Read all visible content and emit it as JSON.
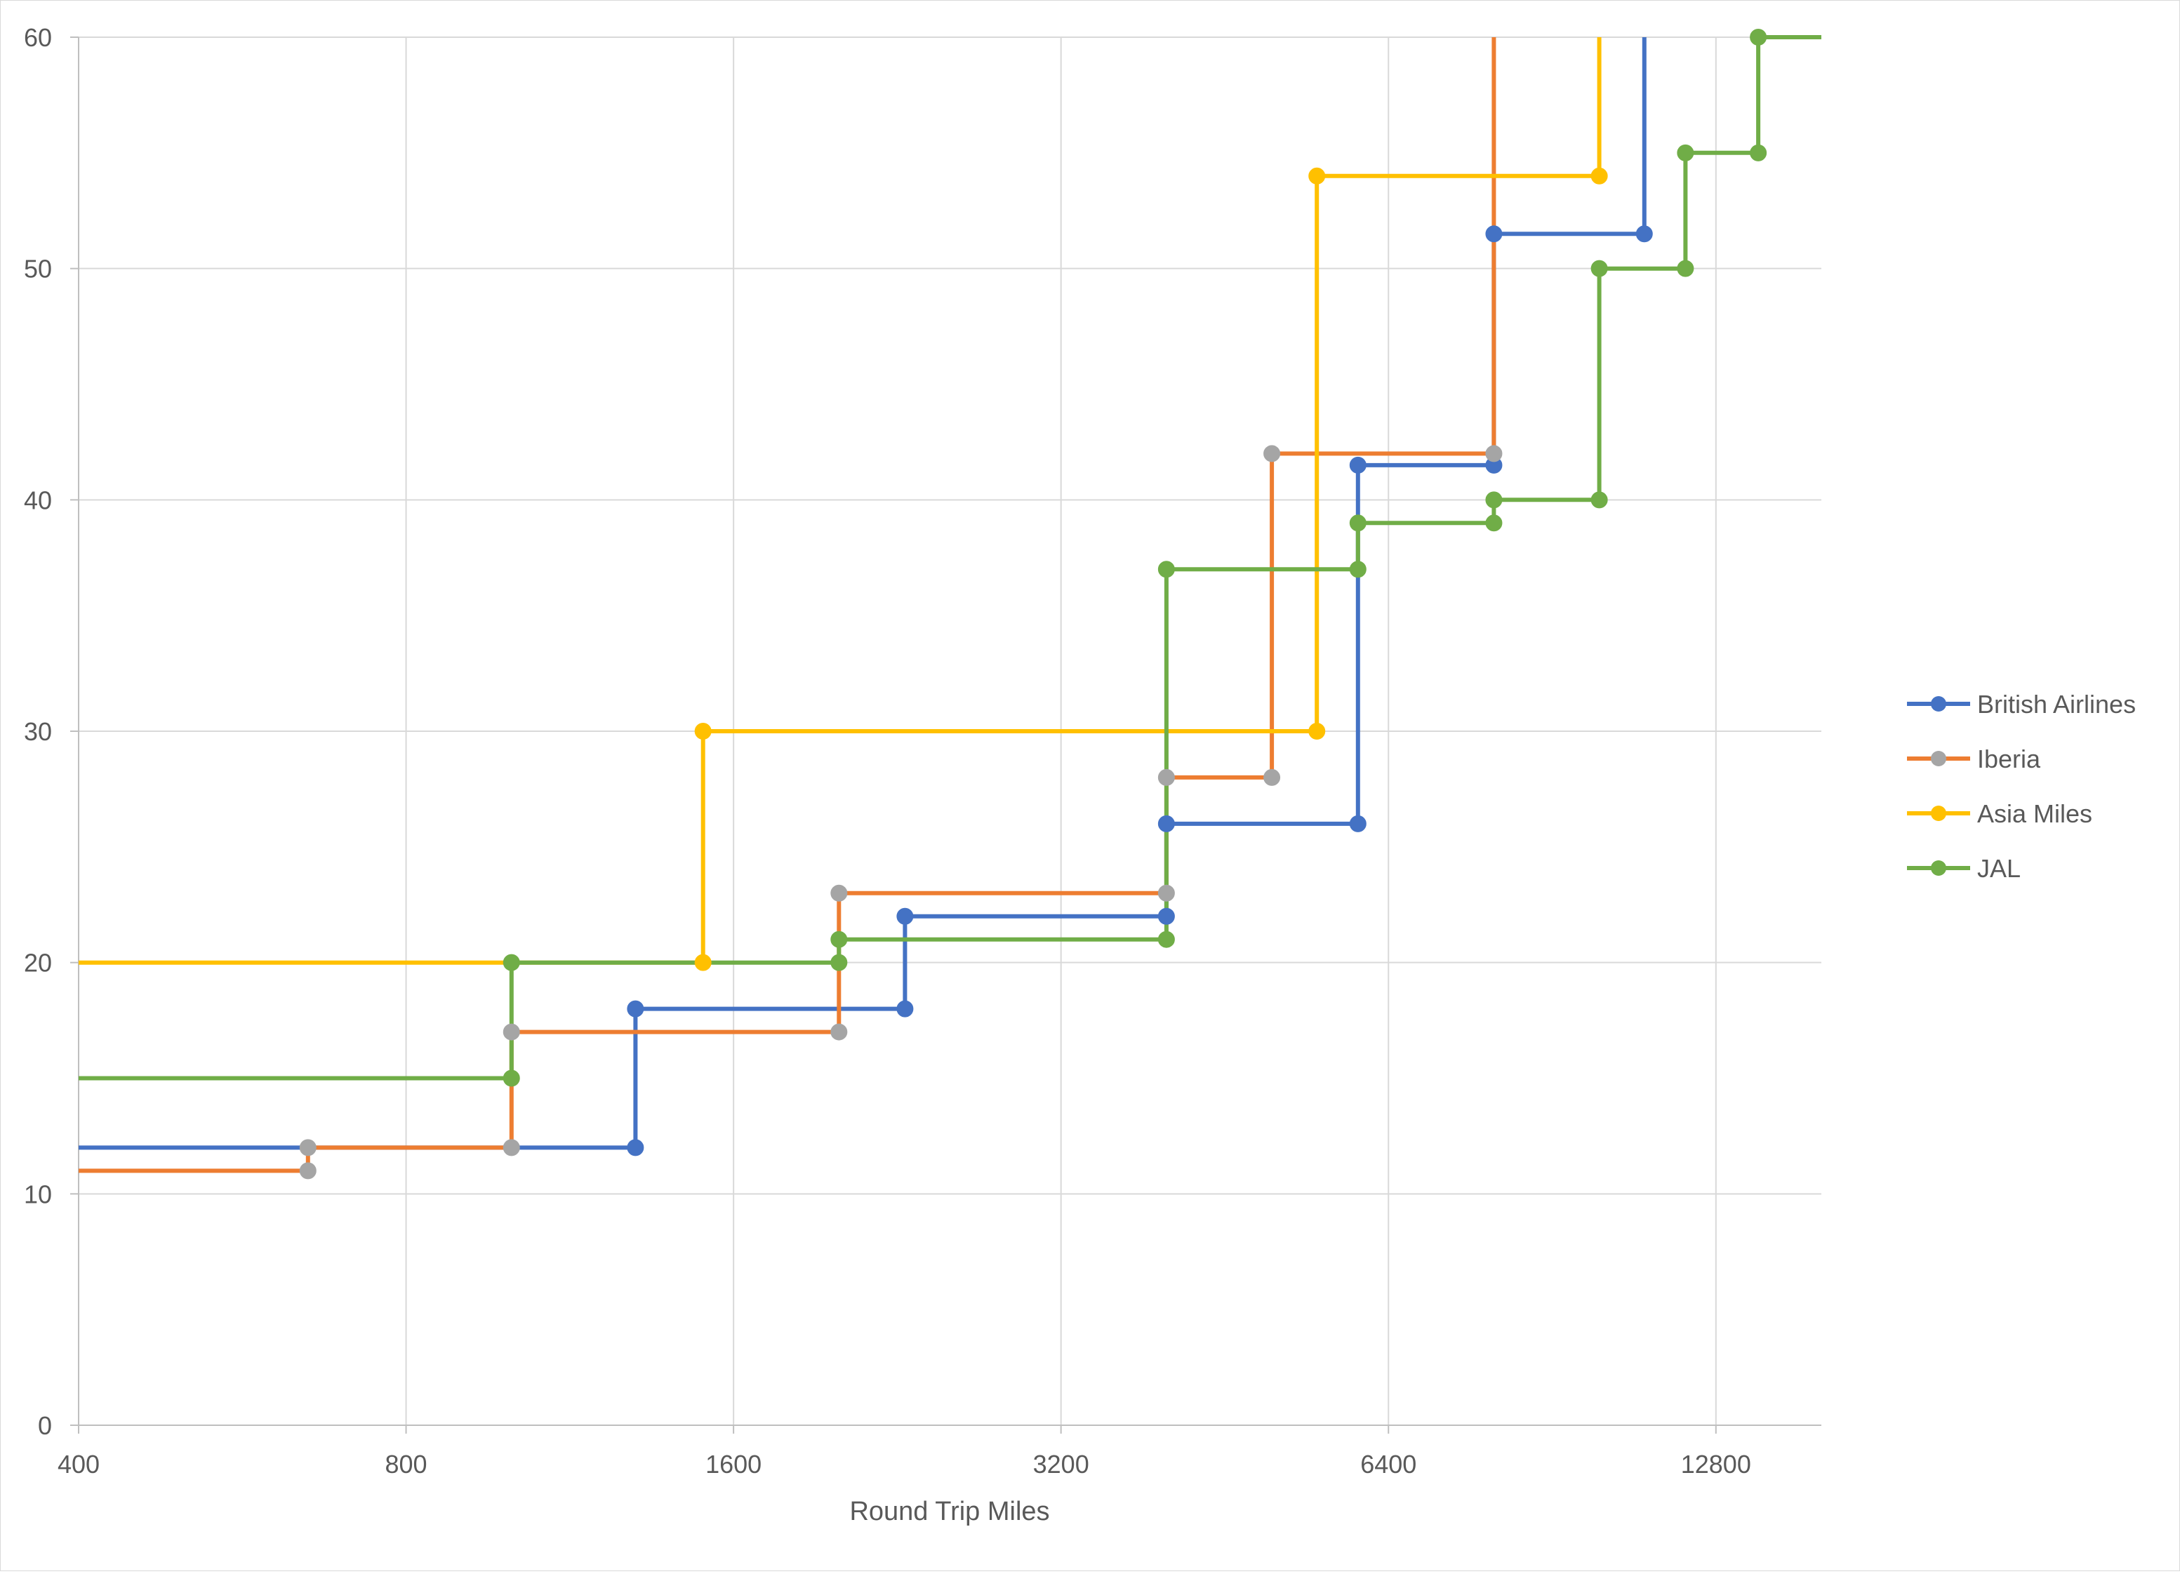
{
  "chart_data": {
    "type": "line",
    "step": true,
    "title": "",
    "xlabel": "Round Trip Miles",
    "ylabel": "",
    "x_scale": "log2",
    "xlim": [
      400,
      16000
    ],
    "ylim": [
      0,
      60
    ],
    "x_ticks": [
      400,
      800,
      1600,
      3200,
      6400,
      12800
    ],
    "y_ticks": [
      0,
      10,
      20,
      30,
      40,
      50,
      60
    ],
    "grid": true,
    "legend_position": "right",
    "series": [
      {
        "name": "British Airlines",
        "color": "#4472C4",
        "points": [
          [
            400,
            12
          ],
          [
            1300,
            12
          ],
          [
            1300,
            18
          ],
          [
            2300,
            18
          ],
          [
            2300,
            22
          ],
          [
            4000,
            22
          ],
          [
            4000,
            26
          ],
          [
            6000,
            26
          ],
          [
            6000,
            41.5
          ],
          [
            8000,
            41.5
          ],
          [
            8000,
            51.5
          ],
          [
            11000,
            51.5
          ],
          [
            11000,
            60
          ]
        ],
        "markers": [
          [
            1300,
            12
          ],
          [
            1300,
            18
          ],
          [
            2300,
            18
          ],
          [
            2300,
            22
          ],
          [
            4000,
            22
          ],
          [
            4000,
            26
          ],
          [
            6000,
            26
          ],
          [
            6000,
            41.5
          ],
          [
            8000,
            41.5
          ],
          [
            8000,
            51.5
          ],
          [
            11000,
            51.5
          ]
        ]
      },
      {
        "name": "Iberia",
        "color": "#ED7D31",
        "marker_color": "#A5A5A5",
        "points": [
          [
            400,
            11
          ],
          [
            650,
            11
          ],
          [
            650,
            12
          ],
          [
            1000,
            12
          ],
          [
            1000,
            17
          ],
          [
            2000,
            17
          ],
          [
            2000,
            23
          ],
          [
            4000,
            23
          ],
          [
            4000,
            28
          ],
          [
            5000,
            28
          ],
          [
            5000,
            42
          ],
          [
            8000,
            42
          ],
          [
            8000,
            60
          ]
        ],
        "markers": [
          [
            650,
            11
          ],
          [
            650,
            12
          ],
          [
            1000,
            12
          ],
          [
            1000,
            17
          ],
          [
            2000,
            17
          ],
          [
            2000,
            23
          ],
          [
            4000,
            23
          ],
          [
            4000,
            28
          ],
          [
            5000,
            28
          ],
          [
            5000,
            42
          ],
          [
            8000,
            42
          ]
        ]
      },
      {
        "name": "Asia Miles",
        "color": "#FFC000",
        "points": [
          [
            400,
            20
          ],
          [
            1500,
            20
          ],
          [
            1500,
            30
          ],
          [
            5500,
            30
          ],
          [
            5500,
            54
          ],
          [
            10000,
            54
          ],
          [
            10000,
            60
          ]
        ],
        "markers": [
          [
            1500,
            20
          ],
          [
            1500,
            30
          ],
          [
            5500,
            30
          ],
          [
            5500,
            54
          ],
          [
            10000,
            54
          ]
        ]
      },
      {
        "name": "JAL",
        "color": "#70AD47",
        "points": [
          [
            400,
            15
          ],
          [
            1000,
            15
          ],
          [
            1000,
            20
          ],
          [
            2000,
            20
          ],
          [
            2000,
            21
          ],
          [
            4000,
            21
          ],
          [
            4000,
            37
          ],
          [
            6000,
            37
          ],
          [
            6000,
            39
          ],
          [
            8000,
            39
          ],
          [
            8000,
            40
          ],
          [
            10000,
            40
          ],
          [
            10000,
            50
          ],
          [
            12000,
            50
          ],
          [
            12000,
            55
          ],
          [
            14000,
            55
          ],
          [
            14000,
            60
          ],
          [
            16000,
            60
          ]
        ],
        "markers": [
          [
            1000,
            15
          ],
          [
            1000,
            20
          ],
          [
            2000,
            20
          ],
          [
            2000,
            21
          ],
          [
            4000,
            21
          ],
          [
            4000,
            37
          ],
          [
            6000,
            37
          ],
          [
            6000,
            39
          ],
          [
            8000,
            39
          ],
          [
            8000,
            40
          ],
          [
            10000,
            40
          ],
          [
            10000,
            50
          ],
          [
            12000,
            50
          ],
          [
            12000,
            55
          ],
          [
            14000,
            55
          ],
          [
            14000,
            60
          ]
        ]
      }
    ]
  }
}
